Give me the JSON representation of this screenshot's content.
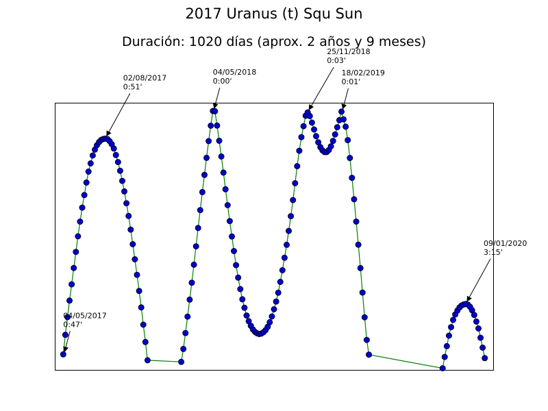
{
  "chart_data": {
    "type": "line",
    "title": "2017 Uranus (t) Squ Sun",
    "subtitle": "Duración: 1020 días (aprox. 2 años y 9 meses)",
    "xlabel": "",
    "ylabel": "",
    "axes_ticks_visible": false,
    "line_color": "#008000",
    "marker_fill": "#0000cc",
    "marker_edge": "#000033",
    "series": [
      {
        "values": [
          [
            0,
            0.95
          ],
          [
            1,
            2.14
          ],
          [
            2,
            3.22
          ],
          [
            3,
            4.23
          ],
          [
            4,
            5.22
          ],
          [
            5,
            6.22
          ],
          [
            6,
            7.2
          ],
          [
            7,
            8.15
          ],
          [
            8,
            9.05
          ],
          [
            9,
            9.9
          ],
          [
            10,
            10.67
          ],
          [
            11,
            11.43
          ],
          [
            12,
            12.1
          ],
          [
            13,
            12.6
          ],
          [
            14,
            13.08
          ],
          [
            15,
            13.44
          ],
          [
            16,
            13.71
          ],
          [
            17,
            13.9
          ],
          [
            18,
            14.03
          ],
          [
            19,
            14.09
          ],
          [
            20,
            14.11
          ],
          [
            21,
            14.08
          ],
          [
            22,
            13.96
          ],
          [
            23,
            13.77
          ],
          [
            24,
            13.51
          ],
          [
            25,
            13.11
          ],
          [
            26,
            12.68
          ],
          [
            27,
            12.15
          ],
          [
            28,
            11.53
          ],
          [
            29,
            10.89
          ],
          [
            30,
            10.17
          ],
          [
            31,
            9.39
          ],
          [
            32,
            8.56
          ],
          [
            33,
            7.67
          ],
          [
            34,
            6.75
          ],
          [
            35,
            5.8
          ],
          [
            36,
            4.82
          ],
          [
            37,
            3.81
          ],
          [
            38,
            2.76
          ],
          [
            39,
            1.7
          ],
          [
            40,
            0.59
          ],
          [
            56,
            0.49
          ],
          [
            57,
            1.28
          ],
          [
            58,
            2.25
          ],
          [
            59,
            3.25
          ],
          [
            60,
            4.29
          ],
          [
            61,
            5.32
          ],
          [
            62,
            6.42
          ],
          [
            63,
            7.54
          ],
          [
            64,
            8.66
          ],
          [
            65,
            9.75
          ],
          [
            66,
            10.85
          ],
          [
            67,
            11.9
          ],
          [
            68,
            12.94
          ],
          [
            69,
            13.96
          ],
          [
            70,
            14.9
          ],
          [
            71,
            15.8
          ],
          [
            72,
            15.78
          ],
          [
            73,
            14.91
          ],
          [
            74,
            13.98
          ],
          [
            75,
            13.02
          ],
          [
            76,
            12.04
          ],
          [
            77,
            11.02
          ],
          [
            78,
            10.05
          ],
          [
            79,
            9.08
          ],
          [
            80,
            8.14
          ],
          [
            81,
            7.25
          ],
          [
            82,
            6.39
          ],
          [
            83,
            5.63
          ],
          [
            84,
            4.93
          ],
          [
            85,
            4.31
          ],
          [
            86,
            3.79
          ],
          [
            87,
            3.32
          ],
          [
            88,
            2.97
          ],
          [
            89,
            2.69
          ],
          [
            90,
            2.47
          ],
          [
            91,
            2.32
          ],
          [
            92,
            2.23
          ],
          [
            93,
            2.19
          ],
          [
            94,
            2.22
          ],
          [
            95,
            2.3
          ],
          [
            96,
            2.43
          ],
          [
            97,
            2.63
          ],
          [
            98,
            2.91
          ],
          [
            99,
            3.26
          ],
          [
            100,
            3.7
          ],
          [
            101,
            4.17
          ],
          [
            102,
            4.71
          ],
          [
            103,
            5.37
          ],
          [
            104,
            6.08
          ],
          [
            105,
            6.84
          ],
          [
            106,
            7.63
          ],
          [
            107,
            8.48
          ],
          [
            108,
            9.38
          ],
          [
            109,
            10.36
          ],
          [
            110,
            11.39
          ],
          [
            111,
            12.43
          ],
          [
            112,
            13.37
          ],
          [
            113,
            14.2
          ],
          [
            114,
            14.87
          ],
          [
            115,
            15.51
          ],
          [
            116,
            15.71
          ],
          [
            117,
            15.49
          ],
          [
            118,
            15.09
          ],
          [
            119,
            14.67
          ],
          [
            120,
            14.26
          ],
          [
            121,
            13.89
          ],
          [
            122,
            13.59
          ],
          [
            123,
            13.39
          ],
          [
            124,
            13.29
          ],
          [
            125,
            13.29
          ],
          [
            126,
            13.41
          ],
          [
            127,
            13.64
          ],
          [
            128,
            13.97
          ],
          [
            129,
            14.37
          ],
          [
            130,
            14.81
          ],
          [
            131,
            15.24
          ],
          [
            132,
            15.76
          ],
          [
            133,
            15.29
          ],
          [
            134,
            14.84
          ],
          [
            135,
            14.02
          ],
          [
            136,
            12.93
          ],
          [
            137,
            11.72
          ],
          [
            138,
            10.41
          ],
          [
            139,
            9.05
          ],
          [
            140,
            7.64
          ],
          [
            141,
            6.21
          ],
          [
            142,
            4.72
          ],
          [
            143,
            3.21
          ],
          [
            144,
            1.83
          ],
          [
            145,
            0.93
          ],
          [
            180,
            0.1
          ],
          [
            181,
            0.79
          ],
          [
            182,
            1.45
          ],
          [
            183,
            2.09
          ],
          [
            184,
            2.61
          ],
          [
            185,
            3.05
          ],
          [
            186,
            3.38
          ],
          [
            187,
            3.62
          ],
          [
            188,
            3.81
          ],
          [
            189,
            3.93
          ],
          [
            190,
            3.99
          ],
          [
            191,
            4.02
          ],
          [
            192,
            3.98
          ],
          [
            193,
            3.85
          ],
          [
            194,
            3.64
          ],
          [
            195,
            3.35
          ],
          [
            196,
            2.95
          ],
          [
            197,
            2.53
          ],
          [
            198,
            1.96
          ],
          [
            199,
            1.36
          ],
          [
            200,
            0.72
          ]
        ]
      }
    ],
    "xlim": [
      -4,
      204
    ],
    "ylim": [
      0,
      16.3
    ],
    "annotations": [
      {
        "date": "04/05/2017",
        "orb": "0:47'",
        "x": 0,
        "y": 0.95
      },
      {
        "date": "02/08/2017",
        "orb": "0:51'",
        "x": 20,
        "y": 14.11
      },
      {
        "date": "04/05/2018",
        "orb": "0:00'",
        "x": 71,
        "y": 15.8
      },
      {
        "date": "25/11/2018",
        "orb": "0:03'",
        "x": 116,
        "y": 15.71
      },
      {
        "date": "18/02/2019",
        "orb": "0:01'",
        "x": 132,
        "y": 15.76
      },
      {
        "date": "09/01/2020",
        "orb": "3:15'",
        "x": 191,
        "y": 4.02
      }
    ]
  }
}
